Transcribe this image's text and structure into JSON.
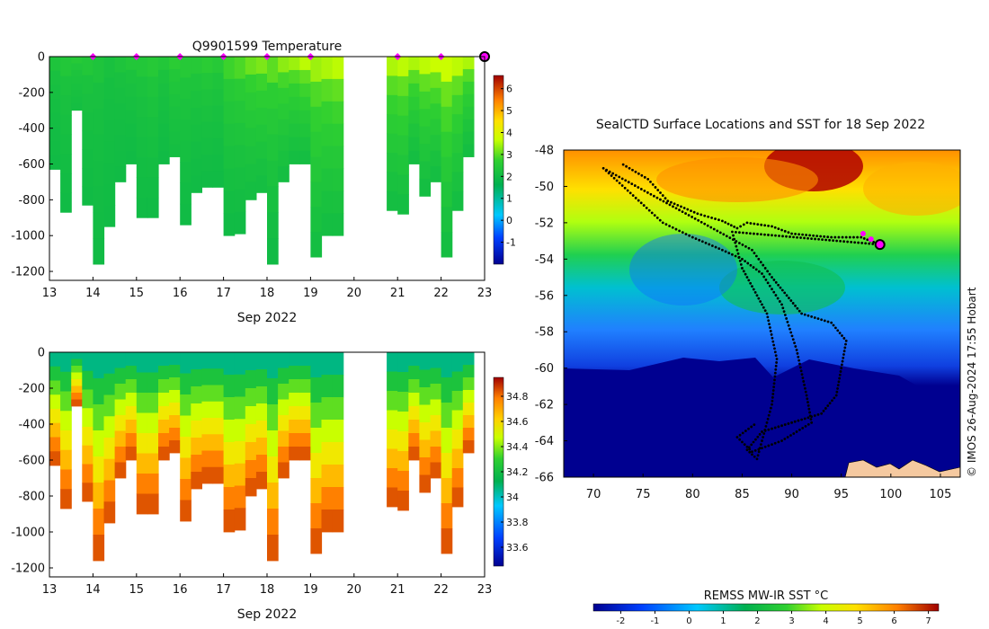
{
  "temperature_title": "Q9901599  Temperature",
  "map_title": "SealCTD Surface Locations and SST for 18 Sep 2022",
  "sst_colorbar_title": "REMSS MW-IR SST °C",
  "credit": "© IMOS 26-Aug-2024 17:55 Hobart",
  "colors": {
    "profile_marker": "#ff00ff",
    "track": "#000000",
    "land": "#f5c9a0",
    "ice_sea": "#000090"
  },
  "chart_data": [
    {
      "type": "heatmap",
      "name": "temperature",
      "title": "Q9901599  Temperature",
      "xlabel": "Sep 2022",
      "xlim": [
        13,
        23
      ],
      "xticks": [
        "13",
        "14",
        "15",
        "16",
        "17",
        "18",
        "19",
        "20",
        "21",
        "22",
        "23"
      ],
      "ylim": [
        -1250,
        0
      ],
      "yticks": [
        "0",
        "-200",
        "-400",
        "-600",
        "-800",
        "-1000",
        "-1200"
      ],
      "colorbar": {
        "min": -2,
        "max": 6.6,
        "ticks": [
          "-1",
          "0",
          "1",
          "2",
          "3",
          "4",
          "5",
          "6"
        ]
      },
      "surface_markers": [
        14,
        15,
        16,
        17,
        18,
        19,
        21,
        22
      ],
      "current_marker": 23,
      "profiles": [
        {
          "day": 13.0,
          "depth": -630,
          "surf": 2.3,
          "bottom": 2.0
        },
        {
          "day": 13.25,
          "depth": -870,
          "surf": 2.4,
          "bottom": 2.0
        },
        {
          "day": 13.5,
          "depth": -300,
          "surf": 2.5,
          "bottom": 2.1
        },
        {
          "day": 13.75,
          "depth": -830,
          "surf": 2.4,
          "bottom": 2.0
        },
        {
          "day": 14.0,
          "depth": -1160,
          "surf": 2.3,
          "bottom": 2.0
        },
        {
          "day": 14.25,
          "depth": -950,
          "surf": 2.2,
          "bottom": 2.0
        },
        {
          "day": 14.5,
          "depth": -700,
          "surf": 2.3,
          "bottom": 2.0
        },
        {
          "day": 14.75,
          "depth": -600,
          "surf": 2.4,
          "bottom": 2.0
        },
        {
          "day": 15.0,
          "depth": -900,
          "surf": 2.4,
          "bottom": 2.0
        },
        {
          "day": 15.25,
          "depth": -900,
          "surf": 2.5,
          "bottom": 2.0
        },
        {
          "day": 15.5,
          "depth": -600,
          "surf": 2.4,
          "bottom": 2.0
        },
        {
          "day": 15.75,
          "depth": -560,
          "surf": 2.6,
          "bottom": 2.1
        },
        {
          "day": 16.0,
          "depth": -940,
          "surf": 2.5,
          "bottom": 2.0
        },
        {
          "day": 16.25,
          "depth": -760,
          "surf": 2.5,
          "bottom": 2.0
        },
        {
          "day": 16.5,
          "depth": -730,
          "surf": 2.6,
          "bottom": 2.0
        },
        {
          "day": 16.75,
          "depth": -730,
          "surf": 2.5,
          "bottom": 2.0
        },
        {
          "day": 17.0,
          "depth": -1000,
          "surf": 2.8,
          "bottom": 2.0
        },
        {
          "day": 17.25,
          "depth": -990,
          "surf": 2.9,
          "bottom": 2.0
        },
        {
          "day": 17.5,
          "depth": -800,
          "surf": 3.1,
          "bottom": 2.1
        },
        {
          "day": 17.75,
          "depth": -760,
          "surf": 3.2,
          "bottom": 2.1
        },
        {
          "day": 18.0,
          "depth": -1160,
          "surf": 3.0,
          "bottom": 2.0
        },
        {
          "day": 18.25,
          "depth": -700,
          "surf": 3.3,
          "bottom": 2.1
        },
        {
          "day": 18.5,
          "depth": -600,
          "surf": 3.4,
          "bottom": 2.1
        },
        {
          "day": 18.75,
          "depth": -600,
          "surf": 3.6,
          "bottom": 2.1
        },
        {
          "day": 19.0,
          "depth": -1120,
          "surf": 3.4,
          "bottom": 2.1
        },
        {
          "day": 19.25,
          "depth": -1000,
          "surf": 3.5,
          "bottom": 2.1
        },
        {
          "day": 19.5,
          "depth": -1000,
          "surf": 3.6,
          "bottom": 2.1
        },
        {
          "day": 20.75,
          "depth": -860,
          "surf": 3.5,
          "bottom": 2.1
        },
        {
          "day": 21.0,
          "depth": -880,
          "surf": 3.6,
          "bottom": 2.1
        },
        {
          "day": 21.25,
          "depth": -600,
          "surf": 3.5,
          "bottom": 2.1
        },
        {
          "day": 21.5,
          "depth": -780,
          "surf": 3.6,
          "bottom": 2.1
        },
        {
          "day": 21.75,
          "depth": -700,
          "surf": 3.7,
          "bottom": 2.1
        },
        {
          "day": 22.0,
          "depth": -1120,
          "surf": 3.7,
          "bottom": 2.1
        },
        {
          "day": 22.25,
          "depth": -860,
          "surf": 3.6,
          "bottom": 2.1
        },
        {
          "day": 22.5,
          "depth": -560,
          "surf": 3.5,
          "bottom": 2.1
        }
      ]
    },
    {
      "type": "heatmap",
      "name": "salinity",
      "title": "",
      "xlabel": "Sep 2022",
      "xlim": [
        13,
        23
      ],
      "xticks": [
        "13",
        "14",
        "15",
        "16",
        "17",
        "18",
        "19",
        "20",
        "21",
        "22",
        "23"
      ],
      "ylim": [
        -1250,
        0
      ],
      "yticks": [
        "0",
        "-200",
        "-400",
        "-600",
        "-800",
        "-1000",
        "-1200"
      ],
      "colorbar": {
        "min": 33.45,
        "max": 34.95,
        "ticks": [
          "33.6",
          "33.8",
          "34",
          "34.2",
          "34.4",
          "34.6",
          "34.8"
        ]
      },
      "surface_value": 34.02,
      "deep_value": 34.82
    },
    {
      "type": "heatmap",
      "name": "sst_map",
      "title": "SealCTD Surface Locations and SST for 18 Sep 2022",
      "xlim": [
        67,
        107
      ],
      "ylim": [
        -66,
        -48
      ],
      "xticks": [
        "70",
        "75",
        "80",
        "85",
        "90",
        "95",
        "100",
        "105"
      ],
      "yticks": [
        "-48",
        "-50",
        "-52",
        "-54",
        "-56",
        "-58",
        "-60",
        "-62",
        "-64",
        "-66"
      ],
      "colorbar": {
        "min": -2.8,
        "max": 7.3,
        "ticks": [
          "-2",
          "-1",
          "0",
          "1",
          "2",
          "3",
          "4",
          "5",
          "6",
          "7"
        ],
        "label": "REMSS MW-IR SST °C"
      },
      "track": [
        [
          73.0,
          -48.8
        ],
        [
          75.5,
          -49.6
        ],
        [
          77.5,
          -50.8
        ],
        [
          80.5,
          -51.5
        ],
        [
          83.0,
          -51.9
        ],
        [
          84.5,
          -52.3
        ],
        [
          85.5,
          -52.0
        ],
        [
          88.0,
          -52.2
        ],
        [
          90.0,
          -52.6
        ],
        [
          94.0,
          -52.8
        ],
        [
          97.0,
          -52.8
        ],
        [
          98.9,
          -53.2
        ],
        [
          84.0,
          -52.5
        ],
        [
          85.0,
          -54.5
        ],
        [
          86.0,
          -55.5
        ],
        [
          87.5,
          -57.0
        ],
        [
          88.5,
          -59.5
        ],
        [
          88.0,
          -62.0
        ],
        [
          87.0,
          -64.0
        ],
        [
          86.5,
          -65.0
        ],
        [
          85.5,
          -64.5
        ],
        [
          87.0,
          -63.5
        ],
        [
          90.0,
          -63.0
        ],
        [
          93.0,
          -62.5
        ],
        [
          94.5,
          -61.5
        ],
        [
          95.0,
          -60.0
        ],
        [
          95.5,
          -58.5
        ],
        [
          94.0,
          -57.5
        ],
        [
          91.0,
          -57.0
        ],
        [
          89.5,
          -56.0
        ],
        [
          88.0,
          -55.0
        ],
        [
          86.0,
          -53.5
        ],
        [
          71.0,
          -49.0
        ],
        [
          74.0,
          -50.5
        ],
        [
          77.0,
          -52.0
        ],
        [
          80.0,
          -52.8
        ],
        [
          83.0,
          -53.5
        ],
        [
          85.0,
          -54.0
        ],
        [
          87.0,
          -54.8
        ],
        [
          89.0,
          -56.5
        ],
        [
          90.5,
          -59.0
        ],
        [
          91.5,
          -61.5
        ],
        [
          92.0,
          -63.0
        ],
        [
          89.0,
          -64.0
        ],
        [
          86.0,
          -64.6
        ],
        [
          84.5,
          -63.8
        ],
        [
          86.5,
          -63.0
        ]
      ],
      "recent_points": [
        [
          97.2,
          -52.6
        ],
        [
          98.0,
          -52.9
        ]
      ],
      "current_position": [
        98.9,
        -53.2
      ]
    }
  ]
}
